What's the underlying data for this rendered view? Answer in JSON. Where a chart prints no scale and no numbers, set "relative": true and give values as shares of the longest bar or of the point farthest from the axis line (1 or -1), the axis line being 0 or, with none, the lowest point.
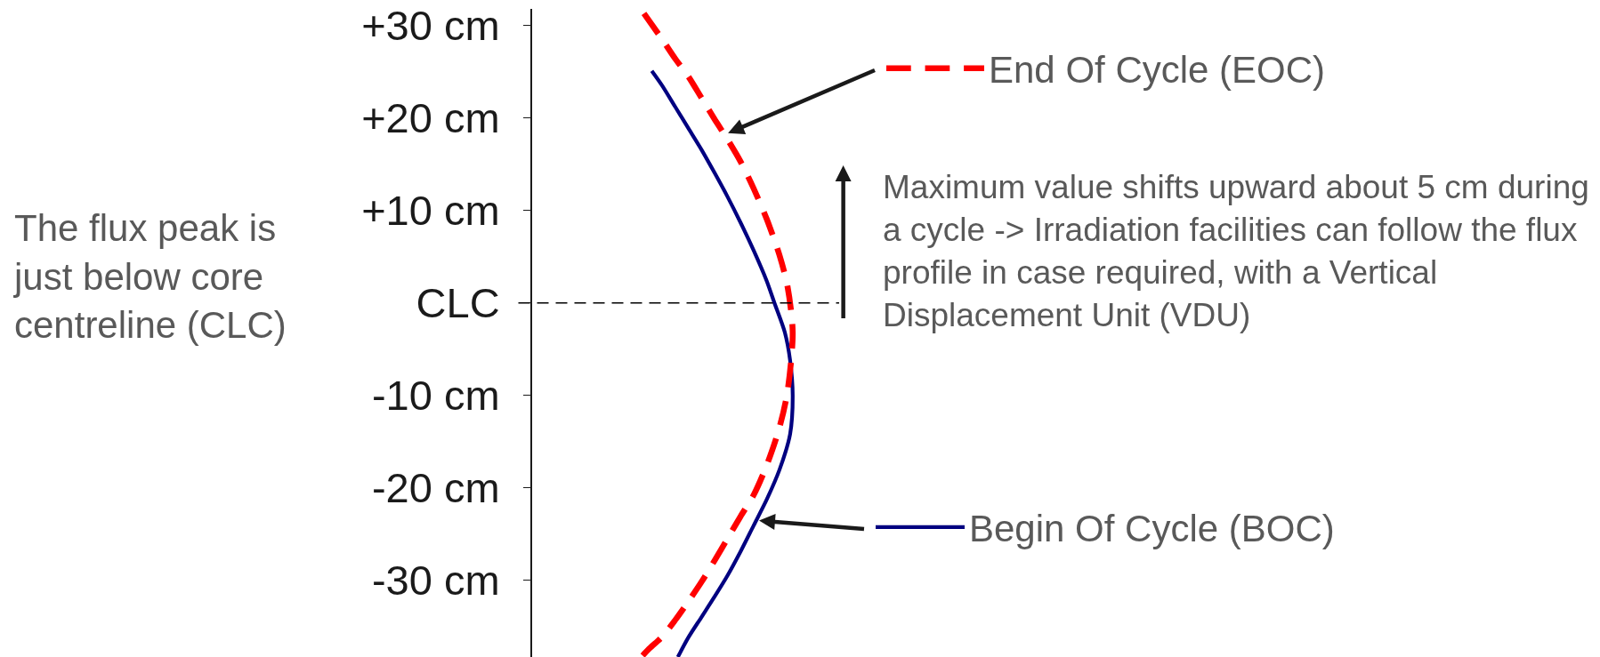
{
  "chart_data": {
    "type": "line",
    "orientation": "horizontal",
    "relative": true,
    "annotations": [
      "The flux peak is just below core centreline (CLC)",
      "Maximum value shifts upward about 5 cm during a cycle -> Irradiation facilities can follow the flux profile in case required, with a Vertical Displacement Unit (VDU)"
    ],
    "ylim": [
      -38.3,
      31.8
    ],
    "yticks": [
      {
        "value": 30,
        "label": "+30 cm"
      },
      {
        "value": 20,
        "label": "+20 cm"
      },
      {
        "value": 10,
        "label": "+10 cm"
      },
      {
        "value": 0,
        "label": "CLC"
      },
      {
        "value": -10,
        "label": "-10 cm"
      },
      {
        "value": -20,
        "label": "-20 cm"
      },
      {
        "value": -30,
        "label": "-30 cm"
      }
    ],
    "ref_lines": [
      {
        "axis": "y",
        "value": 0,
        "color": "#000000",
        "line_style": "dashed"
      }
    ],
    "legend": "right",
    "series": [
      {
        "name": "Begin Of Cycle (BOC)",
        "color": "#000080",
        "line_style": "solid",
        "x": [
          25.1,
          23.5,
          21.2,
          18.9,
          16.6,
          14.1,
          11.5,
          8.7,
          5.7,
          2.4,
          0.0,
          -3.2,
          -6.2,
          -10.0,
          -14.2,
          -18.0,
          -21.3,
          -24.1,
          -26.9,
          -29.5,
          -31.8,
          -34.0,
          -36.2,
          -38.3
        ],
        "values": [
          0.46,
          0.5,
          0.55,
          0.6,
          0.65,
          0.7,
          0.75,
          0.8,
          0.85,
          0.9,
          0.93,
          0.97,
          0.99,
          1.0,
          0.99,
          0.95,
          0.9,
          0.85,
          0.8,
          0.75,
          0.7,
          0.65,
          0.6,
          0.56
        ]
      },
      {
        "name": "End Of Cycle (EOC)",
        "color": "#ff0000",
        "line_style": "dashed",
        "x": [
          31.3,
          28.5,
          26.4,
          24.5,
          22.2,
          19.9,
          17.7,
          15.3,
          12.4,
          9.1,
          5.1,
          1.8,
          -3.2,
          -9.6,
          -13.4,
          -17.6,
          -20.8,
          -23.1,
          -25.5,
          -27.9,
          -30.2,
          -32.3,
          -34.3,
          -36.1,
          -37.4,
          -38.3
        ],
        "values": [
          0.43,
          0.5,
          0.55,
          0.6,
          0.65,
          0.7,
          0.75,
          0.8,
          0.85,
          0.9,
          0.95,
          0.98,
          1.0,
          0.98,
          0.95,
          0.9,
          0.85,
          0.8,
          0.75,
          0.7,
          0.65,
          0.6,
          0.55,
          0.5,
          0.45,
          0.42
        ]
      }
    ]
  }
}
